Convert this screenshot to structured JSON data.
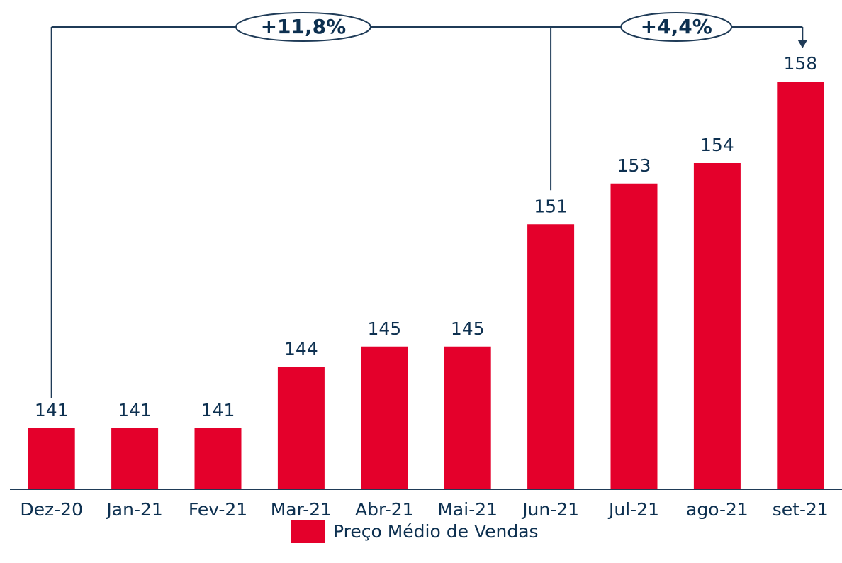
{
  "chart_data": {
    "type": "bar",
    "categories": [
      "Dez-20",
      "Jan-21",
      "Fev-21",
      "Mar-21",
      "Abr-21",
      "Mai-21",
      "Jun-21",
      "Jul-21",
      "ago-21",
      "set-21"
    ],
    "series": [
      {
        "name": "Preço Médio de Vendas",
        "color": "#e4002b",
        "values": [
          141,
          141,
          141,
          144,
          145,
          145,
          151,
          153,
          154,
          158
        ]
      }
    ],
    "ylim": [
      138,
      162
    ],
    "annotations": [
      "+11,8%",
      "+4,4%"
    ]
  }
}
